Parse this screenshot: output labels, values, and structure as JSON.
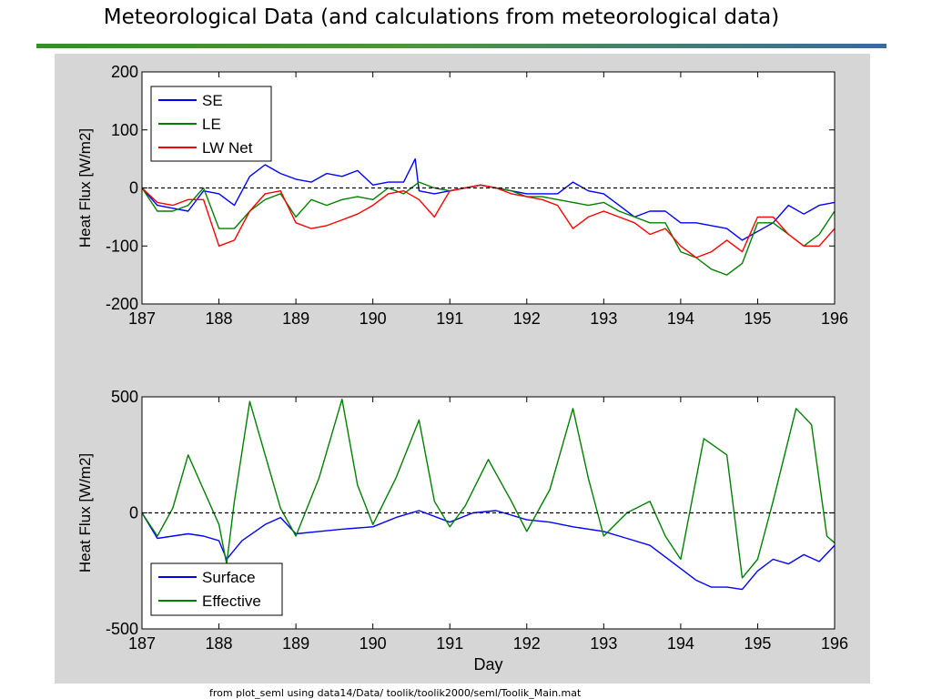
{
  "slide": {
    "title": "Meteorological Data (and calculations from meteorological data)",
    "source": "from plot_seml using data14/Data/ toolik/toolik2000/seml/Toolik_Main.mat"
  },
  "colors": {
    "panel_background": "#d6d6d6",
    "blue": "#0000ff",
    "green": "#008000",
    "red": "#ff0000",
    "zero_line": "#000000"
  },
  "chart_data": [
    {
      "type": "line",
      "ylabel": "Heat Flux [W/m2]",
      "xlabel": "",
      "xlim": [
        187,
        196
      ],
      "ylim": [
        -200,
        200
      ],
      "xticks": [
        187,
        188,
        189,
        190,
        191,
        192,
        193,
        194,
        195,
        196
      ],
      "yticks": [
        -200,
        -100,
        0,
        100,
        200
      ],
      "zero_line": "dashed",
      "legend_position": "top-left",
      "grid": false,
      "series": [
        {
          "name": "SE",
          "color": "#0000ff",
          "x": [
            187,
            187.2,
            187.4,
            187.6,
            187.8,
            188,
            188.2,
            188.4,
            188.6,
            188.8,
            189,
            189.2,
            189.4,
            189.6,
            189.8,
            190,
            190.2,
            190.4,
            190.55,
            190.6,
            190.8,
            191,
            191.2,
            191.4,
            191.6,
            191.8,
            192,
            192.2,
            192.4,
            192.6,
            192.8,
            193,
            193.2,
            193.4,
            193.6,
            193.8,
            194,
            194.2,
            194.4,
            194.6,
            194.8,
            195,
            195.2,
            195.4,
            195.6,
            195.8,
            196
          ],
          "y": [
            0,
            -30,
            -35,
            -40,
            -5,
            -10,
            -30,
            20,
            40,
            25,
            15,
            10,
            25,
            20,
            30,
            5,
            10,
            10,
            50,
            -5,
            -10,
            -5,
            0,
            5,
            0,
            -5,
            -10,
            -10,
            -10,
            10,
            -5,
            -10,
            -30,
            -50,
            -40,
            -40,
            -60,
            -60,
            -65,
            -70,
            -90,
            -75,
            -60,
            -30,
            -45,
            -30,
            -25
          ]
        },
        {
          "name": "LE",
          "color": "#008000",
          "x": [
            187,
            187.2,
            187.4,
            187.6,
            187.8,
            188,
            188.2,
            188.4,
            188.6,
            188.8,
            189,
            189.2,
            189.4,
            189.6,
            189.8,
            190,
            190.2,
            190.4,
            190.6,
            190.8,
            191,
            191.2,
            191.4,
            191.6,
            191.8,
            192,
            192.2,
            192.4,
            192.6,
            192.8,
            193,
            193.2,
            193.4,
            193.6,
            193.8,
            194,
            194.2,
            194.4,
            194.6,
            194.8,
            195,
            195.2,
            195.4,
            195.6,
            195.8,
            196
          ],
          "y": [
            0,
            -40,
            -40,
            -30,
            0,
            -70,
            -70,
            -40,
            -20,
            -10,
            -50,
            -20,
            -30,
            -20,
            -15,
            -20,
            0,
            -10,
            10,
            0,
            -5,
            0,
            5,
            0,
            -5,
            -15,
            -15,
            -20,
            -25,
            -30,
            -25,
            -40,
            -50,
            -60,
            -60,
            -110,
            -120,
            -140,
            -150,
            -130,
            -60,
            -60,
            -80,
            -100,
            -80,
            -40
          ]
        },
        {
          "name": "LW Net",
          "color": "#ff0000",
          "x": [
            187,
            187.2,
            187.4,
            187.6,
            187.8,
            188,
            188.2,
            188.4,
            188.6,
            188.8,
            189,
            189.2,
            189.4,
            189.6,
            189.8,
            190,
            190.2,
            190.4,
            190.6,
            190.8,
            191,
            191.2,
            191.4,
            191.6,
            191.8,
            192,
            192.2,
            192.4,
            192.6,
            192.8,
            193,
            193.2,
            193.4,
            193.6,
            193.8,
            194,
            194.2,
            194.4,
            194.6,
            194.8,
            195,
            195.2,
            195.4,
            195.6,
            195.8,
            196
          ],
          "y": [
            0,
            -25,
            -30,
            -20,
            -20,
            -100,
            -90,
            -40,
            -10,
            -5,
            -60,
            -70,
            -65,
            -55,
            -45,
            -30,
            -10,
            -5,
            -20,
            -50,
            -5,
            0,
            5,
            0,
            -10,
            -15,
            -20,
            -30,
            -70,
            -50,
            -40,
            -50,
            -60,
            -80,
            -70,
            -100,
            -120,
            -110,
            -90,
            -110,
            -50,
            -50,
            -80,
            -100,
            -100,
            -70
          ]
        }
      ]
    },
    {
      "type": "line",
      "ylabel": "Heat Flux [W/m2]",
      "xlabel": "Day",
      "xlim": [
        187,
        196
      ],
      "ylim": [
        -500,
        500
      ],
      "xticks": [
        187,
        188,
        189,
        190,
        191,
        192,
        193,
        194,
        195,
        196
      ],
      "yticks": [
        -500,
        0,
        500
      ],
      "zero_line": "dashed",
      "legend_position": "bottom-left",
      "grid": false,
      "series": [
        {
          "name": "Surface",
          "color": "#0000ff",
          "x": [
            187,
            187.2,
            187.4,
            187.6,
            187.8,
            188,
            188.1,
            188.3,
            188.6,
            188.8,
            189,
            189.3,
            189.6,
            190,
            190.3,
            190.6,
            191,
            191.3,
            191.6,
            192,
            192.3,
            192.6,
            193,
            193.3,
            193.6,
            194,
            194.2,
            194.4,
            194.6,
            194.8,
            195,
            195.2,
            195.4,
            195.6,
            195.8,
            196
          ],
          "y": [
            0,
            -110,
            -100,
            -90,
            -100,
            -120,
            -200,
            -120,
            -50,
            -20,
            -90,
            -80,
            -70,
            -60,
            -20,
            10,
            -40,
            0,
            10,
            -30,
            -40,
            -60,
            -80,
            -110,
            -140,
            -240,
            -290,
            -320,
            -320,
            -330,
            -250,
            -200,
            -220,
            -180,
            -210,
            -140
          ]
        },
        {
          "name": "Effective",
          "color": "#008000",
          "x": [
            187,
            187.2,
            187.4,
            187.6,
            187.8,
            188,
            188.1,
            188.2,
            188.4,
            188.6,
            188.8,
            189,
            189.3,
            189.6,
            189.8,
            190,
            190.3,
            190.6,
            190.8,
            191,
            191.2,
            191.5,
            191.8,
            192,
            192.3,
            192.6,
            192.8,
            193,
            193.3,
            193.6,
            193.8,
            194,
            194.3,
            194.6,
            194.8,
            195,
            195.2,
            195.5,
            195.7,
            195.9,
            196
          ],
          "y": [
            0,
            -100,
            20,
            250,
            100,
            -50,
            -220,
            50,
            480,
            250,
            20,
            -100,
            150,
            490,
            120,
            -50,
            150,
            400,
            50,
            -60,
            30,
            230,
            50,
            -80,
            100,
            450,
            150,
            -100,
            0,
            50,
            -100,
            -200,
            320,
            250,
            -280,
            -200,
            50,
            450,
            380,
            -100,
            -130
          ]
        }
      ]
    }
  ]
}
